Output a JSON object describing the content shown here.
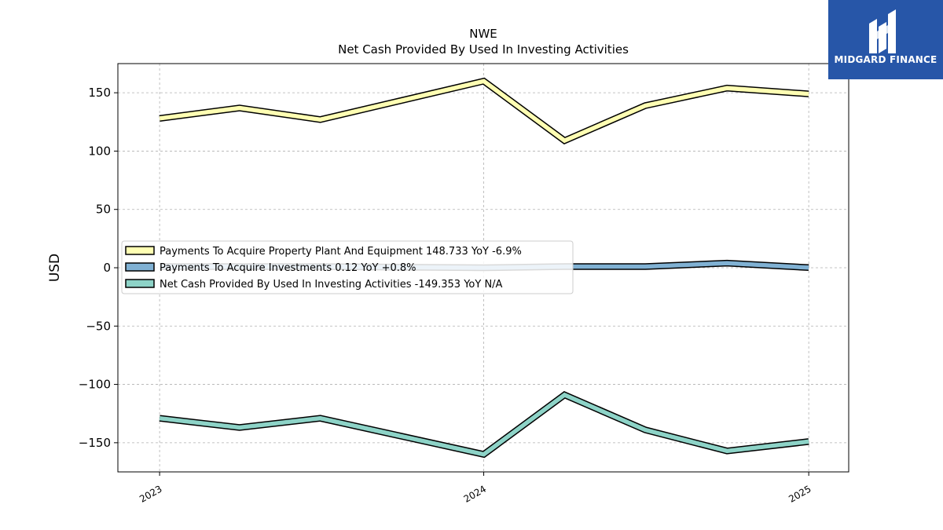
{
  "brand": {
    "name": "MIDGARD FINANCE",
    "bg_color": "#2756a8"
  },
  "chart_data": {
    "type": "line",
    "title": "NWE",
    "subtitle": "Net Cash Provided By Used In Investing Activities",
    "xlabel": "",
    "ylabel": "USD",
    "x": [
      "2023-01-01",
      "2023-04-01",
      "2023-07-01",
      "2024-01-01",
      "2024-04-01",
      "2024-07-01",
      "2024-10-01",
      "2025-01-01"
    ],
    "x_ticks": [
      "2023",
      "2024",
      "2025"
    ],
    "ylim": [
      -175,
      175
    ],
    "y_ticks": [
      150,
      100,
      50,
      0,
      -50,
      -100,
      -150
    ],
    "y_tick_labels": [
      "150",
      "100",
      "50",
      "0",
      "−50",
      "−100",
      "−150"
    ],
    "grid": true,
    "legend_position": "center-left",
    "series": [
      {
        "name": "Payments To Acquire Property Plant And Equipment  148.733 YoY -6.9%",
        "color": "#ffffb3",
        "values": [
          128,
          137,
          127,
          160,
          109,
          139,
          154,
          149
        ]
      },
      {
        "name": "Payments To Acquire Investments  0.12 YoY +0.8%",
        "color": "#80b1d3",
        "values": [
          1,
          1,
          1,
          0,
          1,
          1,
          4,
          0.12
        ]
      },
      {
        "name": "Net Cash Provided By Used In Investing Activities  -149.353 YoY N/A",
        "color": "#8dd3c7",
        "values": [
          -129,
          -137,
          -129,
          -160,
          -109,
          -139,
          -157,
          -149
        ]
      }
    ]
  }
}
